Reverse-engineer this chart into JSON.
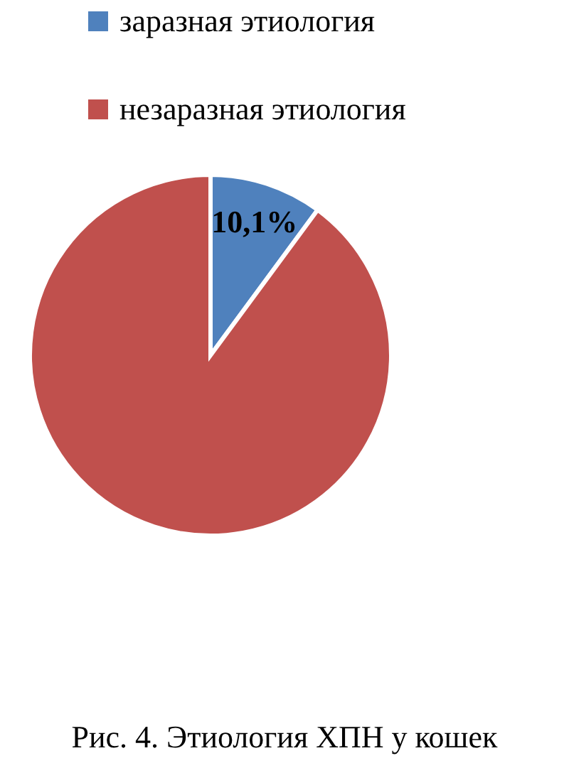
{
  "chart_data": {
    "type": "pie",
    "categories": [
      "заразная этиология",
      "незаразная этиология"
    ],
    "values": [
      10.1,
      89.9
    ],
    "colors": [
      "#4f81bd",
      "#c0504d"
    ],
    "value_labels": [
      "10,1%",
      null
    ],
    "legend": "top",
    "annotations": [
      "Рис. 4. Этиология ХПН у кошек"
    ]
  }
}
